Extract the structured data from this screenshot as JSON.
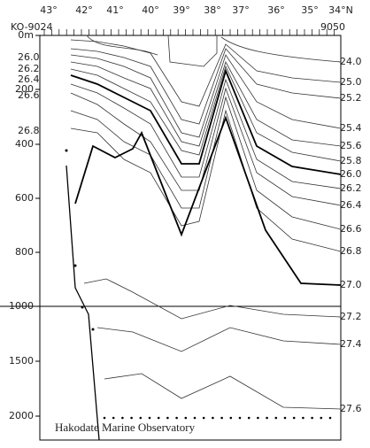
{
  "header": {
    "section_start": "KO-9024",
    "section_end": "9050"
  },
  "longitude_labels": [
    "43°",
    "42°",
    "41°",
    "40°",
    "39°",
    "38°",
    "37°",
    "36°",
    "35°",
    "34°N"
  ],
  "depth_labels": [
    "0m",
    "200",
    "400",
    "600",
    "800",
    "1000",
    "1500",
    "2000"
  ],
  "contour_labels_right": [
    "24.0",
    "25.0",
    "25.2",
    "25.4",
    "25.6",
    "25.8",
    "26.0",
    "26.2",
    "26.4",
    "26.6",
    "26.8",
    "27.0",
    "27.2",
    "27.4",
    "27.6"
  ],
  "contour_labels_left": [
    "26.0",
    "26.2",
    "26.4",
    "26.6",
    "26.8"
  ],
  "credit": "Hakodate Marine Observatory"
}
